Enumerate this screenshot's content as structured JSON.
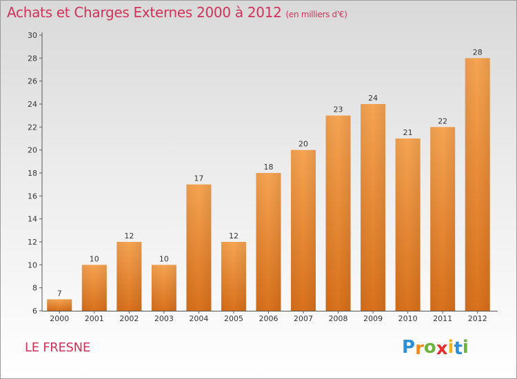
{
  "chart_data": {
    "type": "bar",
    "title": "Achats et Charges Externes 2000 à 2012",
    "unit_note": "(en milliers d'€)",
    "categories": [
      "2000",
      "2001",
      "2002",
      "2003",
      "2004",
      "2005",
      "2006",
      "2007",
      "2008",
      "2009",
      "2010",
      "2011",
      "2012"
    ],
    "values": [
      7,
      10,
      12,
      10,
      17,
      12,
      18,
      20,
      23,
      24,
      21,
      22,
      28
    ],
    "ylim": [
      6,
      30
    ],
    "yticks": [
      6,
      8,
      10,
      12,
      14,
      16,
      18,
      20,
      22,
      24,
      26,
      28,
      30
    ],
    "grid": false,
    "bar_color_top": "#f6a452",
    "bar_color_bottom": "#d9711c"
  },
  "footer": {
    "place": "LE FRESNE",
    "logo_letters": [
      {
        "ch": "P",
        "color": "#2d8fd6"
      },
      {
        "ch": "r",
        "color": "#f08a1e"
      },
      {
        "ch": "o",
        "color": "#6cb33f"
      },
      {
        "ch": "x",
        "color": "#e8312f"
      },
      {
        "ch": "i",
        "color": "#f2b21a"
      },
      {
        "ch": "t",
        "color": "#2d8fd6"
      },
      {
        "ch": "i",
        "color": "#6cb33f"
      }
    ]
  }
}
